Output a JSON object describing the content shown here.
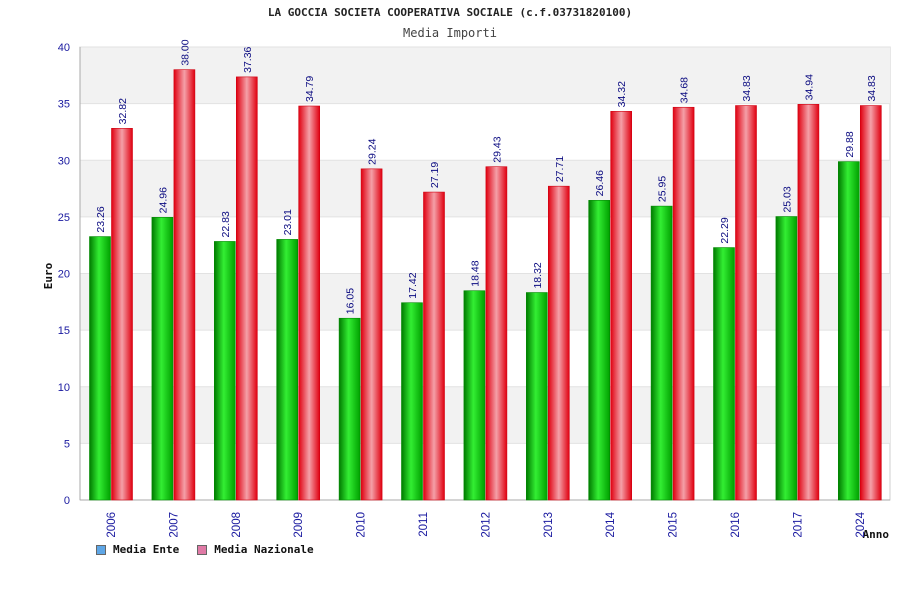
{
  "chart_data": {
    "type": "bar",
    "title": "LA GOCCIA SOCIETA COOPERATIVA SOCIALE (c.f.03731820100)",
    "subtitle": "Media Importi",
    "xlabel": "Anno",
    "ylabel": "Euro",
    "ylim": [
      0,
      40
    ],
    "yticks": [
      0,
      5,
      10,
      15,
      20,
      25,
      30,
      35,
      40
    ],
    "grid": true,
    "legend_position": "bottom-left",
    "categories": [
      "2006",
      "2007",
      "2008",
      "2009",
      "2010",
      "2011",
      "2012",
      "2013",
      "2014",
      "2015",
      "2016",
      "2017",
      "2024"
    ],
    "series": [
      {
        "name": "Media Ente",
        "color": "#00c000",
        "legend_color": "#5ea6e6",
        "values": [
          23.26,
          24.96,
          22.83,
          23.01,
          16.05,
          17.42,
          18.48,
          18.32,
          26.46,
          25.95,
          22.29,
          25.03,
          29.88
        ],
        "labels": [
          "23.26",
          "24.96",
          "22.83",
          "23.01",
          "16.05",
          "17.42",
          "18.48",
          "18.32",
          "26.46",
          "25.95",
          "22.29",
          "25.03",
          "29.88"
        ]
      },
      {
        "name": "Media Nazionale",
        "color": "#e8101e",
        "legend_color": "#e07aa6",
        "values": [
          32.82,
          38.0,
          37.36,
          34.79,
          29.24,
          27.19,
          29.43,
          27.71,
          34.32,
          34.68,
          34.83,
          34.94,
          34.83
        ],
        "labels": [
          "32.82",
          "38.00",
          "37.36",
          "34.79",
          "29.24",
          "27.19",
          "29.43",
          "27.71",
          "34.32",
          "34.68",
          "34.83",
          "34.94",
          "34.83"
        ]
      }
    ]
  }
}
